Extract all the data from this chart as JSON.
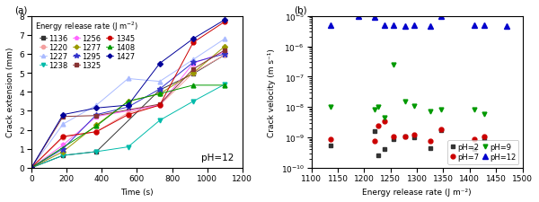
{
  "panel_a": {
    "title": "(a)",
    "xlabel": "Time (s)",
    "ylabel": "Crack extension (mm)",
    "annotation": "pH=12",
    "xlim": [
      0,
      1200
    ],
    "ylim": [
      0,
      8
    ],
    "series": [
      {
        "label": "1136",
        "color": "#333333",
        "marker": "s",
        "markersize": 3.5,
        "times": [
          0,
          180,
          370,
          730,
          920,
          1100
        ],
        "values": [
          0,
          0.65,
          0.85,
          4.1,
          4.95,
          5.95
        ]
      },
      {
        "label": "1220",
        "color": "#f4a0a0",
        "marker": "o",
        "markersize": 3.5,
        "times": [
          0,
          180,
          370,
          550,
          730,
          920,
          1100
        ],
        "values": [
          0,
          1.6,
          1.9,
          2.9,
          3.3,
          5.0,
          5.95
        ]
      },
      {
        "label": "1227",
        "color": "#aabbff",
        "marker": "^",
        "markersize": 3.5,
        "times": [
          0,
          180,
          370,
          550,
          730,
          920,
          1100
        ],
        "values": [
          0,
          2.3,
          3.3,
          4.7,
          4.55,
          5.7,
          6.8
        ]
      },
      {
        "label": "1238",
        "color": "#00bbaa",
        "marker": "v",
        "markersize": 3.5,
        "times": [
          0,
          180,
          370,
          550,
          730,
          920,
          1100
        ],
        "values": [
          0,
          0.65,
          0.85,
          1.1,
          2.5,
          3.5,
          4.4
        ]
      },
      {
        "label": "1256",
        "color": "#ff66ff",
        "marker": "p",
        "markersize": 3.5,
        "times": [
          0,
          180,
          370,
          730,
          920,
          1100
        ],
        "values": [
          0,
          1.2,
          2.7,
          3.3,
          5.5,
          6.1
        ]
      },
      {
        "label": "1277",
        "color": "#999900",
        "marker": "D",
        "markersize": 3,
        "times": [
          0,
          180,
          370,
          550,
          730,
          920,
          1100
        ],
        "values": [
          0,
          0.85,
          2.25,
          3.5,
          3.9,
          5.0,
          6.4
        ]
      },
      {
        "label": "1295",
        "color": "#3333cc",
        "marker": "*",
        "markersize": 4.5,
        "times": [
          0,
          180,
          370,
          550,
          730,
          920,
          1100
        ],
        "values": [
          0,
          1.0,
          2.8,
          3.2,
          4.15,
          5.55,
          6.0
        ]
      },
      {
        "label": "1325",
        "color": "#883333",
        "marker": "s",
        "markersize": 3.5,
        "times": [
          0,
          180,
          370,
          730,
          920,
          1100
        ],
        "values": [
          0,
          2.7,
          2.75,
          3.35,
          5.2,
          6.2
        ]
      },
      {
        "label": "1345",
        "color": "#cc0000",
        "marker": "o",
        "markersize": 3.5,
        "times": [
          0,
          180,
          370,
          550,
          730,
          920,
          1100
        ],
        "values": [
          0,
          1.65,
          1.9,
          2.8,
          3.3,
          6.6,
          7.7
        ]
      },
      {
        "label": "1408",
        "color": "#009900",
        "marker": "^",
        "markersize": 3.5,
        "times": [
          0,
          370,
          550,
          730,
          920,
          1100
        ],
        "values": [
          0,
          2.2,
          3.5,
          3.9,
          4.35,
          4.35
        ]
      },
      {
        "label": "1427",
        "color": "#000099",
        "marker": "D",
        "markersize": 3,
        "times": [
          0,
          180,
          370,
          550,
          730,
          920,
          1100
        ],
        "values": [
          0,
          2.8,
          3.15,
          3.3,
          5.5,
          6.8,
          7.8
        ]
      }
    ]
  },
  "panel_b": {
    "title": "(b)",
    "xlabel": "Energy release rate (J m⁻²)",
    "ylabel": "Crack velocity (m s⁻¹)",
    "xlim": [
      1100,
      1500
    ],
    "ylim_log": [
      -10,
      -5
    ],
    "series": [
      {
        "label": "pH=2",
        "color": "#333333",
        "marker": "s",
        "markersize": 3.5,
        "x": [
          1136,
          1220,
          1227,
          1238,
          1256,
          1277,
          1295,
          1325,
          1345,
          1408,
          1427
        ],
        "y": [
          5.5e-10,
          1.6e-09,
          2.5e-10,
          4e-10,
          9e-10,
          1.1e-09,
          1e-09,
          4.5e-10,
          1.7e-09,
          4e-10,
          9.5e-10
        ]
      },
      {
        "label": "pH=7",
        "color": "#cc0000",
        "marker": "o",
        "markersize": 3.5,
        "x": [
          1136,
          1220,
          1227,
          1238,
          1256,
          1277,
          1295,
          1325,
          1345,
          1408,
          1427
        ],
        "y": [
          9e-10,
          7.5e-10,
          2.5e-09,
          3.5e-09,
          1.1e-09,
          1.1e-09,
          1.2e-09,
          7.5e-10,
          1.8e-09,
          9e-10,
          1.1e-09
        ]
      },
      {
        "label": "pH=9",
        "color": "#009900",
        "marker": "v",
        "markersize": 3.5,
        "x": [
          1136,
          1220,
          1227,
          1238,
          1256,
          1277,
          1295,
          1325,
          1345,
          1408,
          1427
        ],
        "y": [
          1e-08,
          8.5e-09,
          1e-08,
          4.5e-09,
          2.5e-07,
          1.5e-08,
          1.1e-08,
          7e-09,
          8.5e-09,
          8e-09,
          6e-09
        ]
      },
      {
        "label": "pH=12",
        "color": "#0000cc",
        "marker": "^",
        "markersize": 4.5,
        "x": [
          1136,
          1190,
          1220,
          1238,
          1256,
          1277,
          1295,
          1325,
          1345,
          1408,
          1427,
          1470
        ],
        "y": [
          5e-06,
          1e-05,
          9e-06,
          5e-06,
          5e-06,
          4.5e-06,
          5e-06,
          4.5e-06,
          9.5e-06,
          5e-06,
          5e-06,
          4.5e-06
        ]
      }
    ]
  },
  "background_color": "#ffffff",
  "font_size": 6.5
}
